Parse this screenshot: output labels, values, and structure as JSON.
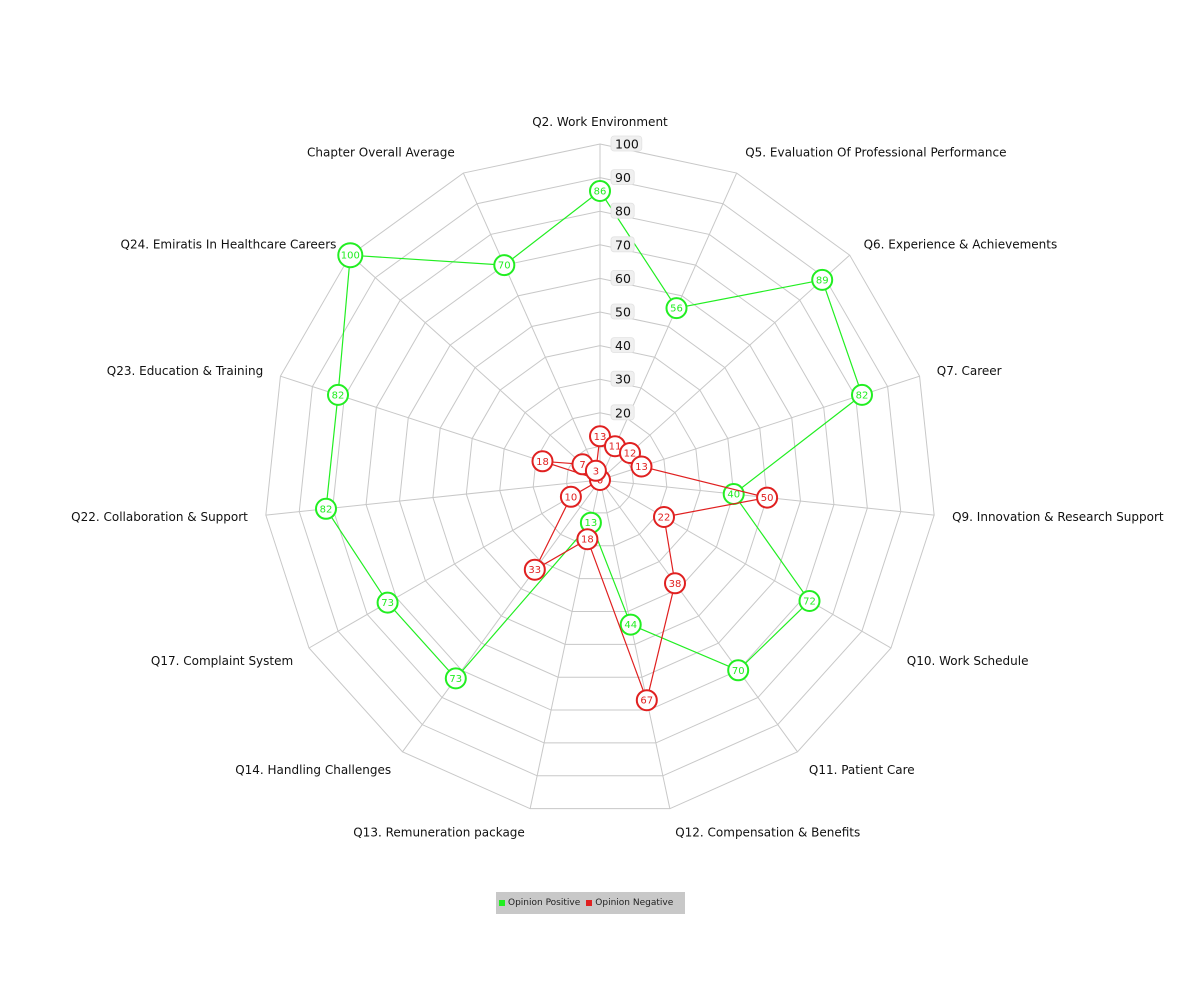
{
  "chart_data": {
    "type": "radar",
    "categories": [
      "Q2. Work Environment",
      "Q5. Evaluation Of Professional Performance",
      "Q6. Experience & Achievements",
      "Q7. Career",
      "Q9. Innovation & Research Support",
      "Q10. Work Schedule",
      "Q11. Patient Care",
      "Q12. Compensation & Benefits",
      "Q13. Remuneration package",
      "Q14. Handling Challenges",
      "Q17. Complaint System",
      "Q22. Collaboration & Support",
      "Q23. Education & Training",
      "Q24. Emiratis In Healthcare Careers",
      "Chapter Overall Average"
    ],
    "series": [
      {
        "name": "Opinion Positive",
        "color": "#22ee22",
        "values": [
          86,
          56,
          89,
          82,
          40,
          72,
          70,
          44,
          13,
          73,
          73,
          82,
          82,
          100,
          70
        ]
      },
      {
        "name": "Opinion Negative",
        "color": "#e02020",
        "values": [
          13,
          11,
          12,
          13,
          50,
          22,
          38,
          67,
          18,
          33,
          10,
          0,
          18,
          7,
          3
        ]
      }
    ],
    "rlim": [
      0,
      100
    ],
    "ticks": [
      20,
      30,
      40,
      50,
      60,
      70,
      80,
      90,
      100
    ],
    "grid": true,
    "legend_position": "bottom-center"
  }
}
